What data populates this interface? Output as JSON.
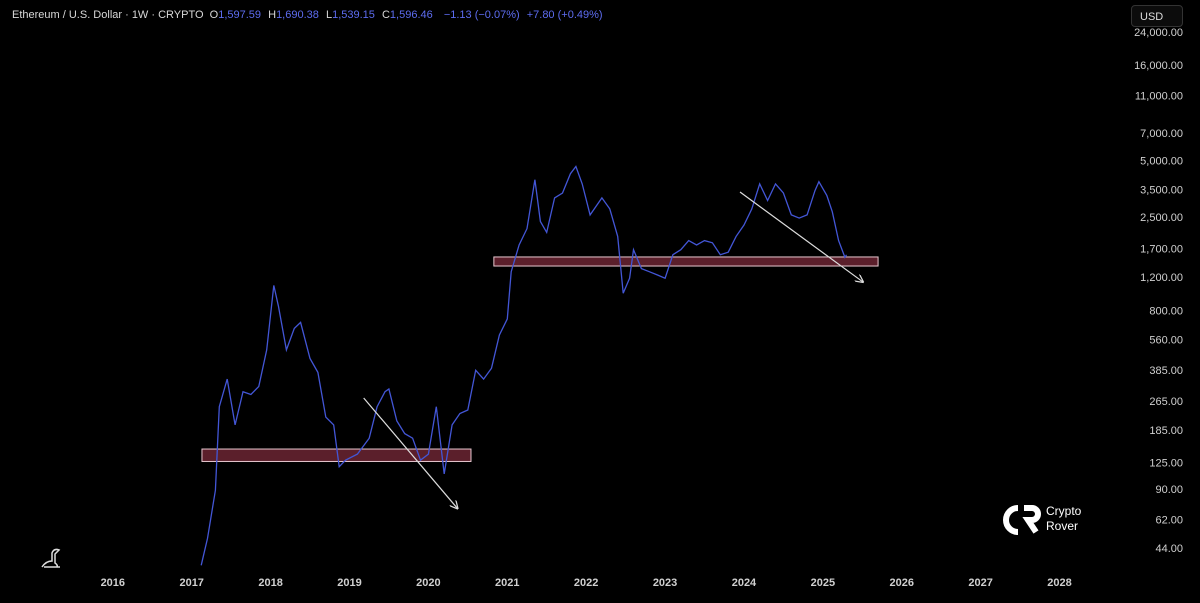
{
  "header": {
    "symbol": "Ethereum / U.S. Dollar · 1W · CRYPTO",
    "ohlc": [
      {
        "label": "O",
        "value": "1,597.59"
      },
      {
        "label": "H",
        "value": "1,690.38"
      },
      {
        "label": "L",
        "value": "1,539.15"
      },
      {
        "label": "C",
        "value": "1,596.46"
      }
    ],
    "change": "−1.13 (−0.07%)",
    "change2": "+7.80 (+0.49%)",
    "currency": "USD"
  },
  "logo": {
    "line1": "Crypto",
    "line2": "Rover"
  },
  "chart_data": {
    "type": "line",
    "log_scale": true,
    "color": "#4356d6",
    "x": [
      2017.12,
      2017.2,
      2017.3,
      2017.35,
      2017.45,
      2017.55,
      2017.65,
      2017.75,
      2017.85,
      2017.95,
      2018.04,
      2018.1,
      2018.2,
      2018.3,
      2018.38,
      2018.5,
      2018.6,
      2018.7,
      2018.8,
      2018.87,
      2018.95,
      2019.1,
      2019.25,
      2019.35,
      2019.45,
      2019.5,
      2019.6,
      2019.7,
      2019.8,
      2019.9,
      2020.0,
      2020.1,
      2020.2,
      2020.3,
      2020.4,
      2020.5,
      2020.6,
      2020.7,
      2020.8,
      2020.9,
      2021.0,
      2021.05,
      2021.15,
      2021.25,
      2021.35,
      2021.42,
      2021.5,
      2021.6,
      2021.7,
      2021.8,
      2021.87,
      2021.95,
      2022.05,
      2022.2,
      2022.3,
      2022.4,
      2022.47,
      2022.55,
      2022.6,
      2022.7,
      2022.8,
      2022.9,
      2023.0,
      2023.1,
      2023.2,
      2023.3,
      2023.4,
      2023.5,
      2023.6,
      2023.7,
      2023.8,
      2023.9,
      2024.0,
      2024.1,
      2024.2,
      2024.3,
      2024.4,
      2024.5,
      2024.6,
      2024.7,
      2024.8,
      2024.9,
      2024.95,
      2025.05,
      2025.12,
      2025.2,
      2025.28,
      2025.3
    ],
    "values": [
      36,
      50,
      90,
      250,
      350,
      200,
      300,
      290,
      320,
      500,
      1100,
      850,
      500,
      650,
      700,
      450,
      380,
      220,
      200,
      120,
      130,
      140,
      170,
      250,
      300,
      310,
      210,
      180,
      170,
      130,
      140,
      250,
      110,
      200,
      230,
      240,
      390,
      350,
      400,
      600,
      730,
      1300,
      1800,
      2200,
      4000,
      2400,
      2100,
      3200,
      3400,
      4300,
      4700,
      3800,
      2600,
      3200,
      2800,
      2000,
      1000,
      1200,
      1700,
      1350,
      1300,
      1250,
      1200,
      1600,
      1700,
      1900,
      1800,
      1900,
      1850,
      1600,
      1650,
      2000,
      2300,
      2800,
      3800,
      3100,
      3800,
      3400,
      2600,
      2500,
      2600,
      3500,
      3900,
      3300,
      2700,
      1900,
      1550,
      1597
    ],
    "xlim": [
      2014.57,
      2028.83
    ],
    "xticks": [
      2016,
      2017,
      2018,
      2019,
      2020,
      2021,
      2022,
      2023,
      2024,
      2025,
      2026,
      2027,
      2028
    ],
    "ylim": [
      34,
      35900
    ],
    "yticks": [
      {
        "value": 24000,
        "label": "24,000.00"
      },
      {
        "value": 16000,
        "label": "16,000.00"
      },
      {
        "value": 11000,
        "label": "11,000.00"
      },
      {
        "value": 7000,
        "label": "7,000.00"
      },
      {
        "value": 5000,
        "label": "5,000.00"
      },
      {
        "value": 3500,
        "label": "3,500.00"
      },
      {
        "value": 2500,
        "label": "2,500.00"
      },
      {
        "value": 1700,
        "label": "1,700.00"
      },
      {
        "value": 1200,
        "label": "1,200.00"
      },
      {
        "value": 800,
        "label": "800.00"
      },
      {
        "value": 560,
        "label": "560.00"
      },
      {
        "value": 385,
        "label": "385.00"
      },
      {
        "value": 265,
        "label": "265.00"
      },
      {
        "value": 185,
        "label": "185.00"
      },
      {
        "value": 125,
        "label": "125.00"
      },
      {
        "value": 90,
        "label": "90.00"
      },
      {
        "value": 62,
        "label": "62.00"
      },
      {
        "value": 44,
        "label": "44.00"
      }
    ],
    "zones": [
      {
        "x": [
          2017.13,
          2020.54
        ],
        "y": [
          128,
          149
        ]
      },
      {
        "x": [
          2020.83,
          2025.7
        ],
        "y": [
          1393,
          1556
        ]
      }
    ],
    "arrows": [
      {
        "x": [
          2019.18,
          2020.37
        ],
        "y": [
          278,
          72
        ]
      },
      {
        "x": [
          2023.95,
          2025.51
        ],
        "y": [
          3440,
          1145
        ]
      }
    ]
  }
}
